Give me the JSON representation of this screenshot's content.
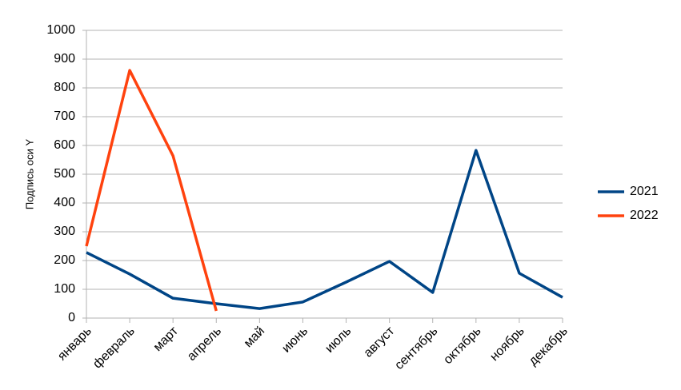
{
  "chart_data": {
    "type": "line",
    "y_label": "Подпись оси Y",
    "categories": [
      "январь",
      "февраль",
      "март",
      "апрель",
      "май",
      "июнь",
      "июль",
      "август",
      "сентябрь",
      "октябрь",
      "ноябрь",
      "декабрь"
    ],
    "series": [
      {
        "name": "2021",
        "color": "#004586",
        "values": [
          228,
          153,
          69,
          50,
          33,
          56,
          125,
          197,
          89,
          583,
          156,
          72
        ]
      },
      {
        "name": "2022",
        "color": "#ff420e",
        "values": [
          250,
          861,
          564,
          25,
          null,
          null,
          null,
          null,
          null,
          null,
          null,
          null
        ]
      }
    ],
    "ylim": [
      0,
      1000
    ],
    "yticks": [
      0,
      100,
      200,
      300,
      400,
      500,
      600,
      700,
      800,
      900,
      1000
    ],
    "grid": true,
    "legend": "right"
  }
}
